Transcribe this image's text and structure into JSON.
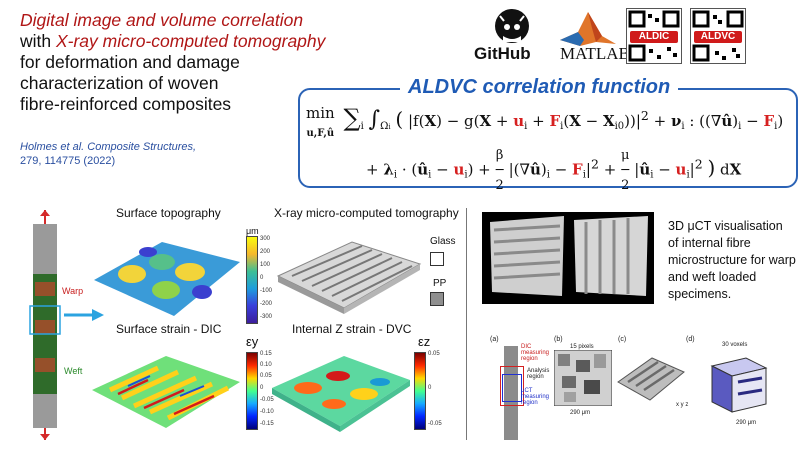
{
  "header": {
    "title_line1": "Digital image and volume correlation",
    "title_line2_prefix": "with ",
    "title_line2_red": "X-ray micro-computed tomography",
    "title_line3": "for deformation and damage",
    "title_line4": "characterization of woven",
    "title_line5": "fibre-reinforced composites",
    "citation_authors": "Holmes et al.",
    "citation_journal": "Composite Structures,",
    "citation_volume": "279, 114775 (2022)"
  },
  "logos": {
    "github": "GitHub",
    "matlab": "MATLAB",
    "qr1_label": "ALDIC",
    "qr2_label": "ALDVC"
  },
  "formula": {
    "title": "ALDVC correlation function",
    "min_label": "min",
    "min_sub": "u,F,û"
  },
  "panels": {
    "surface_topography": "Surface topography",
    "xray_ct": "X-ray micro-computed tomography",
    "surface_strain": "Surface strain - DIC",
    "internal_strain": "Internal Z strain - DVC",
    "warp": "Warp",
    "weft": "Weft",
    "glass": "Glass",
    "pp": "PP",
    "topo_unit": "μm",
    "ey_symbol": "εy",
    "ez_symbol": "εz",
    "topo_ticks": [
      "300",
      "200",
      "100",
      "0",
      "-100",
      "-200",
      "-300"
    ],
    "ey_ticks": [
      "0.15",
      "0.10",
      "0.05",
      "0",
      "-0.05",
      "-0.10",
      "-0.15"
    ],
    "ez_ticks": [
      "0.05",
      "0",
      "-0.05"
    ]
  },
  "right": {
    "ct_description": "3D μCT visualisation of internal fibre microstructure for warp and weft loaded specimens.",
    "fig_a": "(a)",
    "fig_b": "(b)",
    "fig_c": "(c)",
    "fig_d": "(d)",
    "dic_region": "DIC measuring region",
    "analysis_region": "Analysis region",
    "uct_region": "μCT measuring region",
    "pixels_label": "15 pixels",
    "voxels_label": "30 voxels",
    "size_b": "290 μm",
    "size_d": "290 μm"
  },
  "colors": {
    "title_red": "#b01616",
    "formula_blue": "#1f5bb5",
    "citation_blue": "#2a4fa0",
    "highlight_red": "#d62020"
  }
}
